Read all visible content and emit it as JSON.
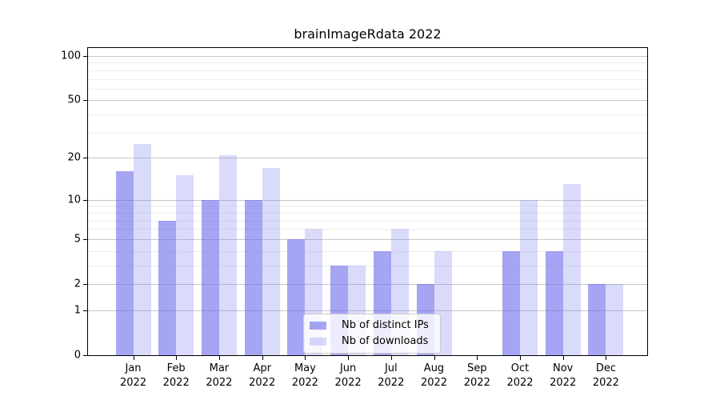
{
  "chart_data": {
    "type": "bar",
    "title": "brainImageRdata 2022",
    "categories": [
      "Jan",
      "Feb",
      "Mar",
      "Apr",
      "May",
      "Jun",
      "Jul",
      "Aug",
      "Sep",
      "Oct",
      "Nov",
      "Dec"
    ],
    "category_year_label": "2022",
    "series": [
      {
        "name": "Nb of distinct IPs",
        "color": "rgba(110, 110, 235, 0.62)",
        "values": [
          16,
          7,
          10,
          10,
          5,
          3,
          4,
          2,
          0,
          4,
          4,
          2
        ]
      },
      {
        "name": "Nb of downloads",
        "color": "rgba(140, 140, 240, 0.32)",
        "values": [
          25,
          15,
          21,
          17,
          6,
          3,
          6,
          4,
          0,
          10,
          13,
          2
        ]
      }
    ],
    "y_axis": {
      "scale": "log1p",
      "lim": [
        0,
        100
      ],
      "major_ticks": [
        0,
        1,
        2,
        5,
        10,
        20,
        50,
        100
      ],
      "minor_ticks": [
        3,
        4,
        6,
        7,
        8,
        9,
        30,
        40,
        60,
        70,
        80,
        90
      ]
    },
    "grid": {
      "orientation": "horizontal",
      "major_color": "#c6c6c6",
      "minor_color": "#ededed"
    },
    "legend_position": "lower center",
    "xlabel": "",
    "ylabel": ""
  }
}
